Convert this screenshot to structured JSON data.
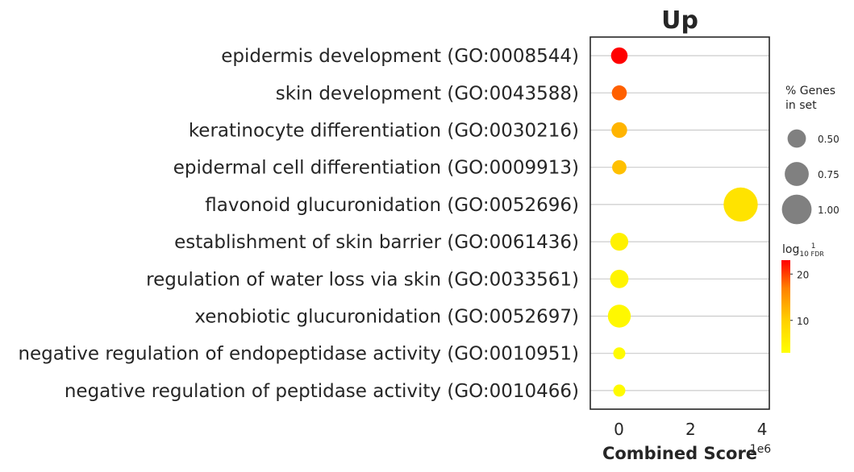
{
  "chart_data": {
    "type": "scatter",
    "title": "Up",
    "xlabel": "Combined Score",
    "x_offset_label": "1e6",
    "xlim": [
      -0.8,
      4.2
    ],
    "xticks": [
      0,
      2,
      4
    ],
    "grid": "horizontal",
    "terms": [
      "epidermis development (GO:0008544)",
      "skin development (GO:0043588)",
      "keratinocyte differentiation (GO:0030216)",
      "epidermal cell differentiation (GO:0009913)",
      "flavonoid glucuronidation (GO:0052696)",
      "establishment of skin barrier (GO:0061436)",
      "regulation of water loss via skin (GO:0033561)",
      "xenobiotic glucuronidation (GO:0052697)",
      "negative regulation of endopeptidase activity (GO:0010951)",
      "negative regulation of peptidase activity (GO:0010466)"
    ],
    "combined_score": [
      0.01,
      0.01,
      0.01,
      0.01,
      3.4,
      0.01,
      0.01,
      0.01,
      0.01,
      0.01
    ],
    "pct_genes_in_set": [
      0.42,
      0.35,
      0.38,
      0.32,
      1.2,
      0.48,
      0.5,
      0.7,
      0.22,
      0.22
    ],
    "log10_inv_fdr": [
      23,
      18,
      12,
      11,
      7,
      5,
      4.5,
      4,
      3.5,
      3.5
    ],
    "size_legend": {
      "title_lines": [
        "% Genes",
        "in set"
      ],
      "values": [
        0.5,
        0.75,
        1.0
      ],
      "labels": [
        "0.50",
        "0.75",
        "1.00"
      ]
    },
    "color_legend": {
      "title": "log10 1/FDR",
      "ticks": [
        20,
        10
      ],
      "range": [
        3,
        23
      ],
      "colormap": [
        "#ffff00",
        "#ffd000",
        "#ff8000",
        "#ff0000"
      ]
    }
  }
}
